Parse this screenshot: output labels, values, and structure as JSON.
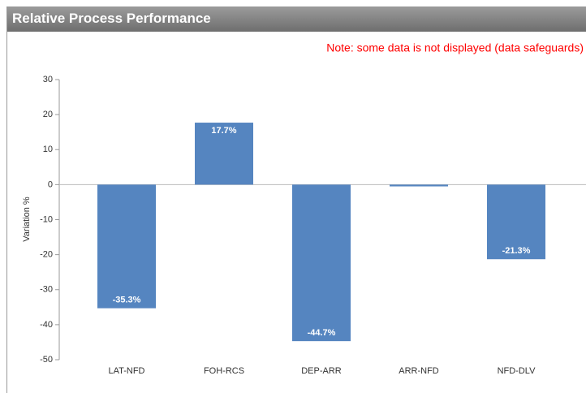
{
  "chart_data": {
    "type": "bar",
    "title": "Relative Process Performance",
    "note": "Note: some data is not displayed (data safeguards)",
    "ylabel": "Variation %",
    "categories": [
      "LAT-NFD",
      "FOH-RCS",
      "DEP-ARR",
      "ARR-NFD",
      "NFD-DLV"
    ],
    "values": [
      -35.3,
      17.7,
      -44.7,
      -0.5,
      -21.3
    ],
    "value_labels": [
      "-35.3%",
      "17.7%",
      "-44.7%",
      null,
      "-21.3%"
    ],
    "color": "#5585c0",
    "ylim": [
      -50,
      30
    ],
    "yticks": [
      -50,
      -40,
      -30,
      -20,
      -10,
      0,
      10,
      20,
      30
    ]
  }
}
